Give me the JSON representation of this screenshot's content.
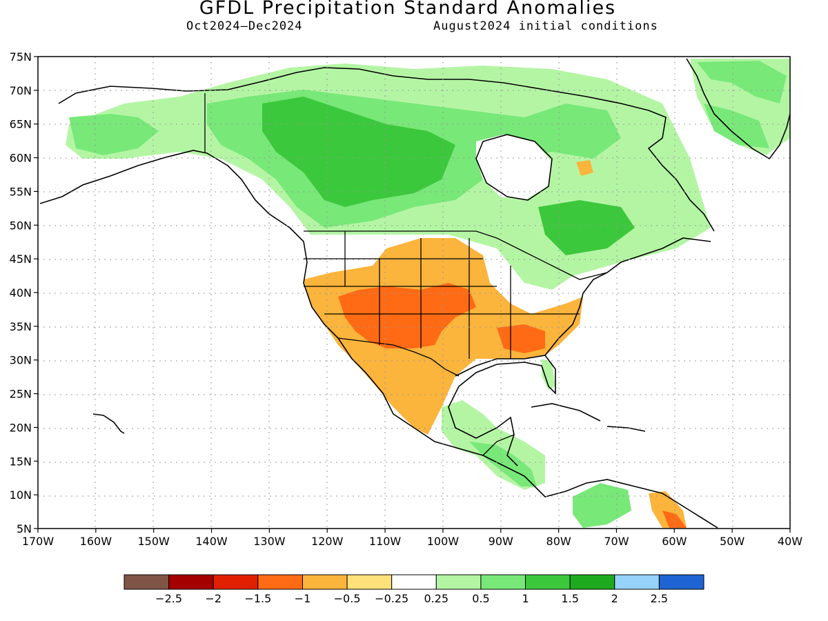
{
  "title": "GFDL Precipitation Standard Anomalies",
  "subtitle_left": "Oct2024–Dec2024",
  "subtitle_right": "August2024 initial conditions",
  "lat_ticks": [
    "75N",
    "70N",
    "65N",
    "60N",
    "55N",
    "50N",
    "45N",
    "40N",
    "35N",
    "30N",
    "25N",
    "20N",
    "15N",
    "10N",
    "5N"
  ],
  "lon_ticks": [
    "170W",
    "160W",
    "150W",
    "140W",
    "130W",
    "120W",
    "110W",
    "100W",
    "90W",
    "80W",
    "70W",
    "60W",
    "50W",
    "40W"
  ],
  "map_extent": {
    "lon": [
      -170,
      -40
    ],
    "lat": [
      5,
      75
    ]
  },
  "colorbar": {
    "colors": [
      "#7f5548",
      "#a40000",
      "#e01f00",
      "#ff6a14",
      "#fbb43c",
      "#ffe07a",
      "#ffffff",
      "#b4f5a4",
      "#78e878",
      "#3cc83c",
      "#1eaa1e",
      "#96d2fa",
      "#1e64d2"
    ],
    "labels": [
      "−2.5",
      "−2",
      "−1.5",
      "−1",
      "−0.5",
      "−0.25",
      "0.25",
      "0.5",
      "1",
      "1.5",
      "2",
      "2.5"
    ]
  },
  "category_colors": {
    "dry_strong": "#ff6a14",
    "dry_moderate": "#fbb43c",
    "dry_weak": "#ffe07a",
    "wet_weak": "#b4f5a4",
    "wet_moderate": "#78e878",
    "wet_strong": "#3cc83c",
    "wet_very": "#1eaa1e"
  }
}
